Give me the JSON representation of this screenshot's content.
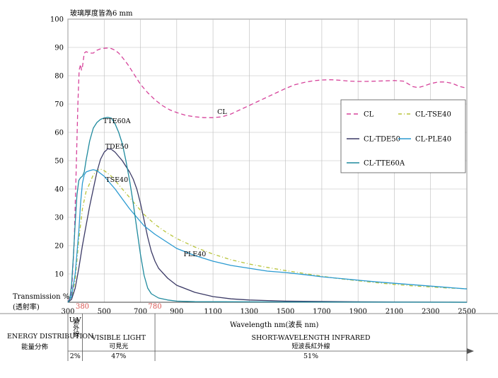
{
  "chart_data": {
    "type": "line",
    "title": "玻璃厚度皆為6 mm",
    "ylabel": "Transmission %",
    "ylabel_cn": "(透射率)",
    "xlabel": "Wavelength nm(波長 nm)",
    "xlim": [
      300,
      2500
    ],
    "ylim": [
      0,
      100
    ],
    "x_ticks": [
      300,
      500,
      700,
      900,
      1100,
      1300,
      1500,
      1700,
      1900,
      2100,
      2300,
      2500
    ],
    "y_ticks": [
      10,
      20,
      30,
      40,
      50,
      60,
      70,
      80,
      90,
      100
    ],
    "extra_x_ticks": [
      380,
      780
    ],
    "extra_x_tick_color": "#d9534f",
    "grid": true,
    "legend_position": "right",
    "series": [
      {
        "name": "CL",
        "color": "#d6439b",
        "dash": "6,4",
        "points": [
          [
            300,
            0
          ],
          [
            320,
            3
          ],
          [
            335,
            22
          ],
          [
            345,
            45
          ],
          [
            355,
            70
          ],
          [
            362,
            82
          ],
          [
            370,
            84
          ],
          [
            375,
            82
          ],
          [
            380,
            83
          ],
          [
            390,
            88
          ],
          [
            400,
            88.5
          ],
          [
            420,
            88
          ],
          [
            440,
            88
          ],
          [
            460,
            89
          ],
          [
            480,
            89.5
          ],
          [
            500,
            89.7
          ],
          [
            520,
            89.8
          ],
          [
            540,
            89.6
          ],
          [
            560,
            89
          ],
          [
            580,
            88
          ],
          [
            600,
            86.5
          ],
          [
            630,
            84
          ],
          [
            660,
            81
          ],
          [
            700,
            77
          ],
          [
            740,
            74
          ],
          [
            780,
            71.5
          ],
          [
            820,
            69.5
          ],
          [
            860,
            68
          ],
          [
            900,
            67
          ],
          [
            950,
            66
          ],
          [
            1000,
            65.5
          ],
          [
            1050,
            65.2
          ],
          [
            1100,
            65.2
          ],
          [
            1150,
            65.5
          ],
          [
            1200,
            66.5
          ],
          [
            1250,
            68
          ],
          [
            1300,
            69.5
          ],
          [
            1350,
            71
          ],
          [
            1400,
            72.5
          ],
          [
            1450,
            74
          ],
          [
            1500,
            75.5
          ],
          [
            1550,
            76.8
          ],
          [
            1600,
            77.6
          ],
          [
            1650,
            78.2
          ],
          [
            1700,
            78.5
          ],
          [
            1750,
            78.6
          ],
          [
            1800,
            78.4
          ],
          [
            1850,
            78.1
          ],
          [
            1900,
            78
          ],
          [
            1950,
            78
          ],
          [
            2000,
            78.1
          ],
          [
            2050,
            78.2
          ],
          [
            2100,
            78.3
          ],
          [
            2150,
            78.1
          ],
          [
            2180,
            77
          ],
          [
            2200,
            76.2
          ],
          [
            2230,
            75.8
          ],
          [
            2260,
            76.3
          ],
          [
            2300,
            77.2
          ],
          [
            2340,
            77.8
          ],
          [
            2380,
            77.8
          ],
          [
            2420,
            77.3
          ],
          [
            2460,
            76.2
          ],
          [
            2500,
            75.6
          ]
        ]
      },
      {
        "name": "CL-TSE40",
        "color": "#b8c43a",
        "dash": "5,3,1,3",
        "points": [
          [
            300,
            0
          ],
          [
            320,
            1
          ],
          [
            340,
            8
          ],
          [
            360,
            22
          ],
          [
            380,
            33
          ],
          [
            400,
            39
          ],
          [
            420,
            42
          ],
          [
            440,
            45
          ],
          [
            460,
            46.5
          ],
          [
            480,
            47
          ],
          [
            500,
            46.5
          ],
          [
            520,
            45.5
          ],
          [
            540,
            44.5
          ],
          [
            560,
            43
          ],
          [
            580,
            41.5
          ],
          [
            600,
            40
          ],
          [
            640,
            37
          ],
          [
            680,
            34
          ],
          [
            720,
            31
          ],
          [
            780,
            27.5
          ],
          [
            840,
            24.8
          ],
          [
            900,
            22.5
          ],
          [
            1000,
            19.5
          ],
          [
            1100,
            17
          ],
          [
            1200,
            15
          ],
          [
            1300,
            13.5
          ],
          [
            1400,
            12.3
          ],
          [
            1500,
            11.2
          ],
          [
            1600,
            10.2
          ],
          [
            1700,
            9.2
          ],
          [
            1800,
            8.3
          ],
          [
            1900,
            7.6
          ],
          [
            2000,
            6.9
          ],
          [
            2100,
            6.3
          ],
          [
            2200,
            5.8
          ],
          [
            2300,
            5.4
          ],
          [
            2400,
            5
          ],
          [
            2500,
            4.8
          ]
        ]
      },
      {
        "name": "CL-TDE50",
        "color": "#3b3a66",
        "dash": "",
        "points": [
          [
            300,
            0
          ],
          [
            320,
            1
          ],
          [
            340,
            5
          ],
          [
            360,
            12
          ],
          [
            380,
            20
          ],
          [
            400,
            27
          ],
          [
            420,
            34
          ],
          [
            440,
            40
          ],
          [
            460,
            46
          ],
          [
            480,
            50.5
          ],
          [
            500,
            53
          ],
          [
            520,
            54.2
          ],
          [
            540,
            54
          ],
          [
            560,
            53
          ],
          [
            580,
            51.5
          ],
          [
            600,
            50
          ],
          [
            620,
            48
          ],
          [
            640,
            46
          ],
          [
            660,
            43.5
          ],
          [
            680,
            40
          ],
          [
            700,
            35
          ],
          [
            720,
            29
          ],
          [
            740,
            23
          ],
          [
            760,
            18
          ],
          [
            780,
            14.5
          ],
          [
            800,
            12
          ],
          [
            850,
            8.5
          ],
          [
            900,
            6
          ],
          [
            1000,
            3.5
          ],
          [
            1100,
            2
          ],
          [
            1200,
            1.2
          ],
          [
            1300,
            0.8
          ],
          [
            1500,
            0.4
          ],
          [
            1800,
            0.2
          ],
          [
            2100,
            0.1
          ],
          [
            2500,
            0
          ]
        ]
      },
      {
        "name": "CL-PLE40",
        "color": "#2a9ad1",
        "dash": "",
        "points": [
          [
            300,
            0
          ],
          [
            320,
            2
          ],
          [
            340,
            10
          ],
          [
            360,
            25
          ],
          [
            370,
            35
          ],
          [
            380,
            42
          ],
          [
            390,
            45
          ],
          [
            400,
            46
          ],
          [
            420,
            46.5
          ],
          [
            440,
            46.8
          ],
          [
            460,
            46.5
          ],
          [
            480,
            45.5
          ],
          [
            500,
            44.5
          ],
          [
            520,
            43
          ],
          [
            540,
            41.5
          ],
          [
            560,
            40
          ],
          [
            600,
            36.5
          ],
          [
            640,
            33
          ],
          [
            680,
            30
          ],
          [
            720,
            27
          ],
          [
            780,
            24
          ],
          [
            840,
            21.5
          ],
          [
            900,
            19
          ],
          [
            1000,
            16.5
          ],
          [
            1100,
            14.5
          ],
          [
            1200,
            13
          ],
          [
            1300,
            12
          ],
          [
            1400,
            11
          ],
          [
            1500,
            10.5
          ],
          [
            1600,
            9.8
          ],
          [
            1700,
            9
          ],
          [
            1800,
            8.4
          ],
          [
            1900,
            7.8
          ],
          [
            2000,
            7.2
          ],
          [
            2100,
            6.7
          ],
          [
            2200,
            6.2
          ],
          [
            2300,
            5.7
          ],
          [
            2400,
            5.2
          ],
          [
            2500,
            4.7
          ]
        ]
      },
      {
        "name": "CL-TTE60A",
        "color": "#1f8a9e",
        "dash": "",
        "points": [
          [
            300,
            0
          ],
          [
            310,
            1
          ],
          [
            320,
            6
          ],
          [
            330,
            16
          ],
          [
            340,
            28
          ],
          [
            350,
            38
          ],
          [
            360,
            43
          ],
          [
            370,
            44
          ],
          [
            380,
            44.5
          ],
          [
            390,
            46
          ],
          [
            400,
            50
          ],
          [
            420,
            57
          ],
          [
            440,
            61.5
          ],
          [
            460,
            63.5
          ],
          [
            480,
            64.6
          ],
          [
            500,
            65.1
          ],
          [
            520,
            65.3
          ],
          [
            540,
            65
          ],
          [
            560,
            63
          ],
          [
            580,
            60
          ],
          [
            600,
            56
          ],
          [
            620,
            50
          ],
          [
            640,
            43
          ],
          [
            660,
            35
          ],
          [
            680,
            26
          ],
          [
            700,
            17
          ],
          [
            720,
            9.5
          ],
          [
            740,
            5
          ],
          [
            760,
            3
          ],
          [
            800,
            1.5
          ],
          [
            850,
            0.8
          ],
          [
            900,
            0.4
          ],
          [
            1000,
            0.2
          ],
          [
            1500,
            0.1
          ],
          [
            2500,
            0
          ]
        ]
      }
    ],
    "labels": [
      {
        "text": "CL",
        "x": 1150,
        "y": 66.5
      },
      {
        "text": "TTE60A",
        "x": 570,
        "y": 63.3
      },
      {
        "text": "TDE50",
        "x": 570,
        "y": 54.3
      },
      {
        "text": "TSE40",
        "x": 570,
        "y": 42.5
      },
      {
        "text": "PLE40",
        "x": 1000,
        "y": 16.2
      }
    ],
    "energy_distribution": {
      "title": "ENERGY DISTRIBUTION",
      "title_cn": "能量分佈",
      "regions": [
        {
          "name": "U.V",
          "name_cn": "紫外線",
          "percent": "2%",
          "from": 300,
          "to": 380
        },
        {
          "name": "VISIBLE LIGHT",
          "name_cn": "可見光",
          "percent": "47%",
          "from": 380,
          "to": 780
        },
        {
          "name": "SHORT-WAVELENGTH INFRARED",
          "name_cn": "短波長紅外線",
          "percent": "51%",
          "from": 780,
          "to": 2500
        }
      ]
    }
  }
}
